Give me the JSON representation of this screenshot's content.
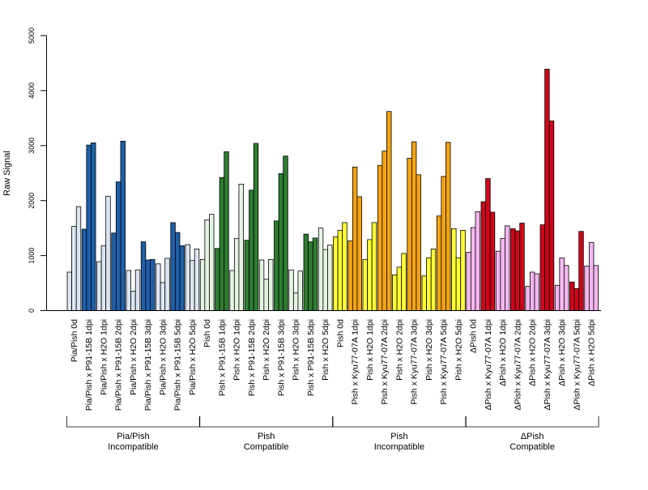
{
  "chart_data": {
    "type": "bar",
    "ylabel": "Raw Signal",
    "ylim": [
      0,
      5000
    ],
    "yticks": [
      0,
      1000,
      2000,
      3000,
      4000,
      5000
    ],
    "grid": false,
    "bars_per_group": 3,
    "categories": [
      "Pia/Pish 0d",
      "Pia/Pish x P91-15B 1dpi",
      "Pia/Pish x H2O 1dpi",
      "Pia/Pish x P91-15B 2dpi",
      "Pia/Pish x H2O 2dpi",
      "Pia/Pish x P91-15B 3dpi",
      "Pia/Pish x H2O 3dpi",
      "Pia/Pish x P91-15B 5dpi",
      "Pia/Pish x H2O 5dpi",
      "Pish 0d",
      "Pish x P91-15B 1dpi",
      "Pish x H2O 1dpi",
      "Pish x P91-15B 2dpi",
      "Pish x H2O 2dpi",
      "Pish x P91-15B 3dpi",
      "Pish x H2O 3dpi",
      "Pish x P91-15B 5dpi",
      "Pish x H2O 5dpi",
      "Pish 0d",
      "Pish x Kyu77-07A 1dpi",
      "Pish x H2O 1dpi",
      "Pish x Kyu77-07A 2dpi",
      "Pish x H2O 2dpi",
      "Pish x Kyu77-07A 3dpi",
      "Pish x H2O 3dpi",
      "Pish x Kyu77-07A 5dpi",
      "Pish x H2O 5dpi",
      "ΔPish 0d",
      "ΔPish x Kyu77-07A 1dpi",
      "ΔPish x H2O 1dpi",
      "ΔPish x Kyu77-07A 2dpi",
      "ΔPish x H2O 2dpi",
      "ΔPish x Kyu77-07A 3dpi",
      "ΔPish x H2O 3dpi",
      "ΔPish x Kyu77-07A 5dpi",
      "ΔPish x H2O 5dpi"
    ],
    "colors": [
      "#dce6f2",
      "#1f5fa8",
      "#dce6f2",
      "#1f5fa8",
      "#dce6f2",
      "#1f5fa8",
      "#dce6f2",
      "#1f5fa8",
      "#dce6f2",
      "#e5f3e2",
      "#2e7d32",
      "#e5f3e2",
      "#2e7d32",
      "#e5f3e2",
      "#2e7d32",
      "#e5f3e2",
      "#2e7d32",
      "#e5f3e2",
      "#ffff33",
      "#f5a313",
      "#ffff33",
      "#f5a313",
      "#ffff33",
      "#f5a313",
      "#ffff33",
      "#f5a313",
      "#ffff33",
      "#f5b6f0",
      "#d0021b",
      "#f5b6f0",
      "#d0021b",
      "#f5b6f0",
      "#d0021b",
      "#f5b6f0",
      "#d0021b",
      "#f5b6f0"
    ],
    "values": [
      [
        700,
        1530,
        1890
      ],
      [
        1480,
        3010,
        3050
      ],
      [
        890,
        1180,
        2080
      ],
      [
        1410,
        2340,
        3080
      ],
      [
        730,
        350,
        740
      ],
      [
        1250,
        920,
        930
      ],
      [
        850,
        510,
        950
      ],
      [
        1600,
        1420,
        1180
      ],
      [
        1200,
        910,
        1120
      ],
      [
        930,
        1650,
        1750
      ],
      [
        1130,
        2420,
        2890
      ],
      [
        730,
        1310,
        2300
      ],
      [
        1280,
        2190,
        3040
      ],
      [
        920,
        570,
        930
      ],
      [
        1630,
        2490,
        2810
      ],
      [
        740,
        320,
        720
      ],
      [
        1390,
        1250,
        1320
      ],
      [
        1500,
        1110,
        1190
      ],
      [
        1340,
        1460,
        1600
      ],
      [
        1270,
        2610,
        2070
      ],
      [
        930,
        1290,
        1600
      ],
      [
        2640,
        2900,
        3620
      ],
      [
        650,
        790,
        1040
      ],
      [
        2770,
        3070,
        2470
      ],
      [
        630,
        960,
        1120
      ],
      [
        1720,
        2440,
        3060
      ],
      [
        1490,
        960,
        1460
      ],
      [
        1060,
        1510,
        1800
      ],
      [
        1980,
        2400,
        1790
      ],
      [
        1080,
        1310,
        1540
      ],
      [
        1490,
        1450,
        1590
      ],
      [
        440,
        700,
        670
      ],
      [
        1560,
        4390,
        3450
      ],
      [
        460,
        960,
        820
      ],
      [
        520,
        400,
        1440
      ],
      [
        810,
        1240,
        820
      ]
    ],
    "groups": [
      {
        "line1": "Pia/Pish",
        "line2": "Incompatible"
      },
      {
        "line1": "Pish",
        "line2": "Compatible"
      },
      {
        "line1": "Pish",
        "line2": "Incompatible"
      },
      {
        "line1": "ΔPish",
        "line2": "Compatible"
      }
    ]
  }
}
